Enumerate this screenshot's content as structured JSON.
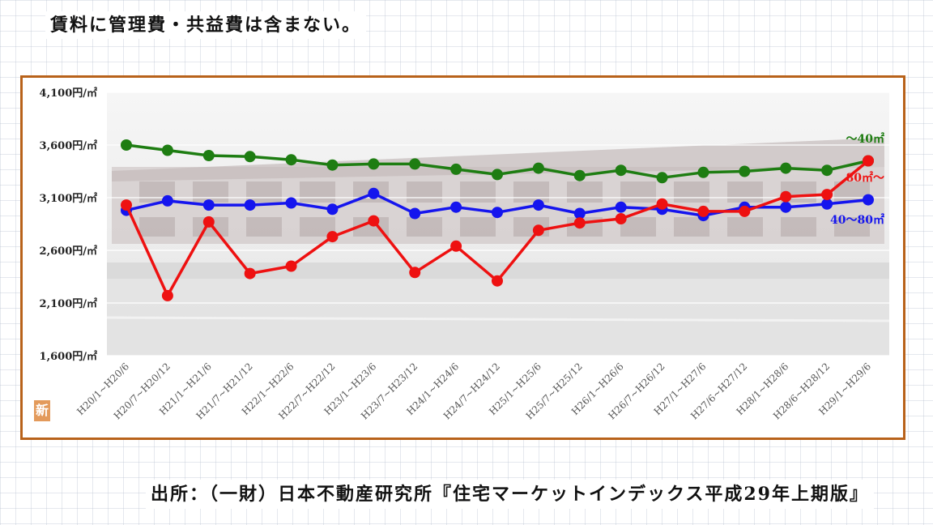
{
  "note": "賃料に管理費・共益費は含まない。",
  "source": "出所：（一財）日本不動産研究所『住宅マーケットインデックス平成29年上期版』",
  "badge": "新",
  "chart_data": {
    "type": "line",
    "title": "",
    "xlabel": "",
    "ylabel": "",
    "ylim": [
      1600,
      4100
    ],
    "yticks": [
      1600,
      2100,
      2600,
      3100,
      3600,
      4100
    ],
    "ytick_labels": [
      "1,600円/㎡",
      "2,100円/㎡",
      "2,600円/㎡",
      "3,100円/㎡",
      "3,600円/㎡",
      "4,100円/㎡"
    ],
    "grid": true,
    "legend": "inline-right",
    "categories": [
      "H20/1~H20/6",
      "H20/7~H20/12",
      "H21/1~H21/6",
      "H21/7~H21/12",
      "H22/1~H22/6",
      "H22/7~H22/12",
      "H23/1~H23/6",
      "H23/7~H23/12",
      "H24/1~H24/6",
      "H24/7~H24/12",
      "H25/1~H25/6",
      "H25/7~H25/12",
      "H26/1~H26/6",
      "H26/7~H26/12",
      "H27/1~H27/6",
      "H27/6~H27/12",
      "H28/1~H28/6",
      "H28/6~H28/12",
      "H29/1~H29/6"
    ],
    "series": [
      {
        "name": "～40㎡",
        "color": "#1e7d12",
        "values": [
          3600,
          3550,
          3500,
          3490,
          3460,
          3410,
          3420,
          3420,
          3370,
          3320,
          3380,
          3310,
          3360,
          3290,
          3340,
          3350,
          3380,
          3360,
          3450
        ]
      },
      {
        "name": "40～80㎡",
        "color": "#1515ee",
        "values": [
          2980,
          3070,
          3030,
          3030,
          3050,
          2990,
          3140,
          2950,
          3010,
          2960,
          3030,
          2950,
          3010,
          2990,
          2930,
          3010,
          3010,
          3040,
          3080
        ]
      },
      {
        "name": "80㎡～",
        "color": "#ee1111",
        "values": [
          3030,
          2170,
          2870,
          2380,
          2450,
          2730,
          2880,
          2390,
          2640,
          2310,
          2790,
          2860,
          2900,
          3040,
          2970,
          2970,
          3110,
          3130,
          3450
        ]
      }
    ]
  }
}
